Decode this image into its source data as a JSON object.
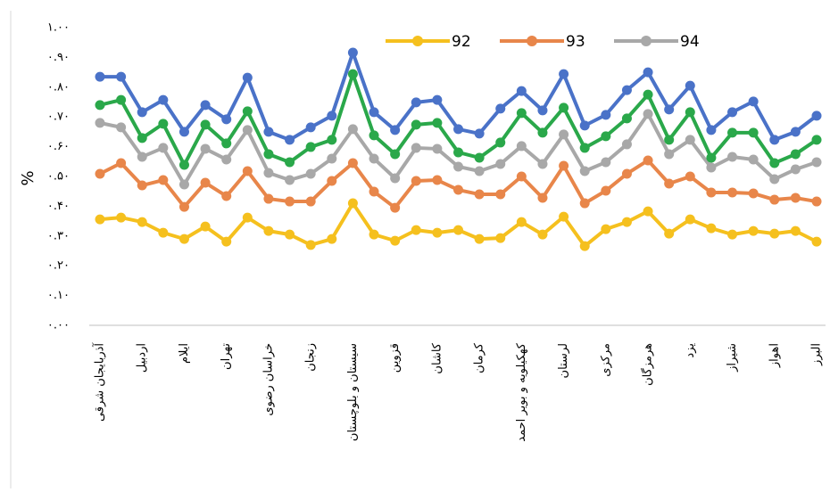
{
  "chart_data": {
    "type": "line",
    "ylabel": "%",
    "categories": [
      "آذربایجان شرقی",
      null,
      "اردبیل",
      null,
      "ایلام",
      null,
      "تهران",
      null,
      "خراسان رضوی",
      null,
      "زنجان",
      null,
      "سیستان و بلوچستان",
      null,
      "قزوین",
      null,
      "کاشان",
      null,
      "کرمان",
      null,
      "کهکیلویه و بویر احمد",
      null,
      "لرستان",
      null,
      "مرکزی",
      null,
      "هرمزگان",
      null,
      "یزد",
      null,
      "شیراز",
      null,
      "اهواز",
      null,
      "البرز"
    ],
    "series": [
      {
        "name": "92",
        "color": "#f5c01e",
        "values": [
          0.356,
          0.362,
          0.347,
          0.311,
          0.29,
          0.332,
          0.281,
          0.362,
          0.317,
          0.305,
          0.27,
          0.29,
          0.41,
          0.305,
          0.284,
          0.32,
          0.311,
          0.32,
          0.29,
          0.293,
          0.347,
          0.305,
          0.365,
          0.266,
          0.323,
          0.347,
          0.383,
          0.308,
          0.356,
          0.326,
          0.305,
          0.317,
          0.308,
          0.317,
          0.281
        ]
      },
      {
        "name": "93",
        "color": "#e8864a",
        "values": [
          0.509,
          0.545,
          0.47,
          0.488,
          0.398,
          0.479,
          0.434,
          0.518,
          0.425,
          0.416,
          0.416,
          0.485,
          0.545,
          0.449,
          0.395,
          0.485,
          0.488,
          0.455,
          0.44,
          0.44,
          0.5,
          0.428,
          0.536,
          0.41,
          0.452,
          0.509,
          0.554,
          0.476,
          0.5,
          0.446,
          0.446,
          0.443,
          0.422,
          0.428,
          0.416
        ]
      },
      {
        "name": "94",
        "color": "#a8a8a8",
        "values": [
          0.68,
          0.665,
          0.566,
          0.596,
          0.473,
          0.593,
          0.557,
          0.656,
          0.512,
          0.488,
          0.509,
          0.56,
          0.659,
          0.56,
          0.494,
          0.596,
          0.593,
          0.533,
          0.518,
          0.542,
          0.602,
          0.542,
          0.641,
          0.518,
          0.548,
          0.608,
          0.71,
          0.575,
          0.623,
          0.53,
          0.566,
          0.557,
          0.491,
          0.524,
          0.548
        ]
      },
      {
        "color": "#2aa84a",
        "values": [
          0.74,
          0.757,
          0.629,
          0.677,
          0.539,
          0.674,
          0.611,
          0.719,
          0.575,
          0.548,
          0.599,
          0.623,
          0.844,
          0.638,
          0.575,
          0.674,
          0.68,
          0.581,
          0.563,
          0.614,
          0.713,
          0.647,
          0.731,
          0.596,
          0.635,
          0.695,
          0.775,
          0.623,
          0.716,
          0.563,
          0.647,
          0.647,
          0.545,
          0.575,
          0.623
        ]
      },
      {
        "color": "#4a72c8",
        "values": [
          0.835,
          0.835,
          0.716,
          0.757,
          0.65,
          0.74,
          0.692,
          0.832,
          0.65,
          0.623,
          0.665,
          0.704,
          0.916,
          0.716,
          0.656,
          0.749,
          0.757,
          0.659,
          0.644,
          0.728,
          0.787,
          0.722,
          0.844,
          0.671,
          0.707,
          0.79,
          0.85,
          0.725,
          0.805,
          0.656,
          0.716,
          0.752,
          0.623,
          0.65,
          0.704
        ]
      }
    ],
    "ylim": [
      0,
      1
    ],
    "yticks": [
      {
        "value": 0,
        "label": "۰.۰۰"
      },
      {
        "value": 0.1,
        "label": "۰.۱۰"
      },
      {
        "value": 0.2,
        "label": "۰.۲۰"
      },
      {
        "value": 0.3,
        "label": "۰.۳۰"
      },
      {
        "value": 0.4,
        "label": "۰.۴۰"
      },
      {
        "value": 0.5,
        "label": "۰.۵۰"
      },
      {
        "value": 0.6,
        "label": "۰.۶۰"
      },
      {
        "value": 0.7,
        "label": "۰.۷۰"
      },
      {
        "value": 0.8,
        "label": "۰.۸۰"
      },
      {
        "value": 0.9,
        "label": "۰.۹۰"
      },
      {
        "value": 1,
        "label": "۱.۰۰"
      }
    ],
    "grid": false,
    "legend": "top"
  }
}
